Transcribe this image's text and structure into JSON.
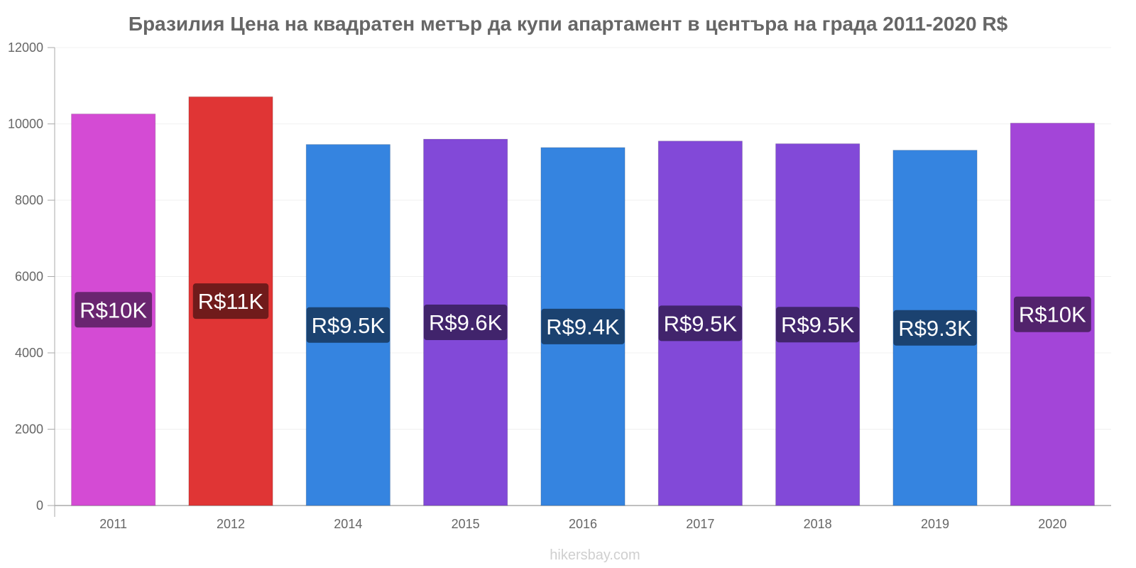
{
  "chart_data": {
    "type": "bar",
    "title": "Бразилия Цена на квадратен метър да купи апартамент в центъра на града 2011-2020 R$",
    "xlabel": "",
    "ylabel": "",
    "ylim": [
      0,
      12000
    ],
    "yticks": [
      0,
      2000,
      4000,
      6000,
      8000,
      10000,
      12000
    ],
    "ytick_labels": [
      "0",
      "2000",
      "4000",
      "6000",
      "8000",
      "10000",
      "12000"
    ],
    "categories": [
      "2011",
      "2012",
      "2014",
      "2015",
      "2016",
      "2017",
      "2018",
      "2019",
      "2020"
    ],
    "values": [
      10260,
      10710,
      9460,
      9600,
      9380,
      9550,
      9480,
      9310,
      10020
    ],
    "data_labels": [
      "R$10K",
      "R$11K",
      "R$9.5K",
      "R$9.6K",
      "R$9.4K",
      "R$9.5K",
      "R$9.5K",
      "R$9.3K",
      "R$10K"
    ],
    "bar_colors": [
      "#d44bd4",
      "#e03535",
      "#3584e0",
      "#8249d8",
      "#3584e0",
      "#8249d8",
      "#8249d8",
      "#3584e0",
      "#a345d8"
    ],
    "label_bg_colors": [
      "#6a2570",
      "#701b1b",
      "#1b4270",
      "#41246c",
      "#1b4270",
      "#41246c",
      "#41246c",
      "#1b4270",
      "#52236c"
    ],
    "grid": true,
    "legend": "none"
  },
  "footer": {
    "watermark": "hikersbay.com"
  }
}
